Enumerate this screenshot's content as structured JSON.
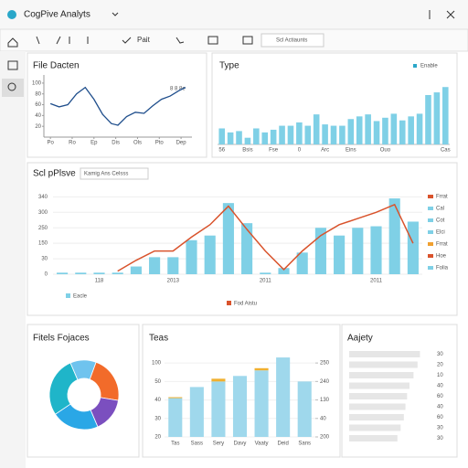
{
  "app": {
    "title": "CogPive Analyts"
  },
  "toolbar": {
    "items": [
      "Pait",
      "Scl Actiaunts"
    ]
  },
  "line_panel": {
    "type": "line",
    "title": "File Dacten",
    "annotation": "8 8 8e",
    "color": "#1f4e8c",
    "x": [
      0,
      0.4,
      0.8,
      1.2,
      1.6,
      2.0,
      2.4,
      2.8,
      3.1,
      3.5,
      3.9,
      4.3,
      4.7,
      5.1,
      5.5,
      5.9,
      6.2
    ],
    "values": [
      62,
      56,
      60,
      80,
      92,
      70,
      42,
      25,
      22,
      38,
      46,
      44,
      58,
      70,
      76,
      86,
      92
    ],
    "xlim": [
      -0.3,
      6.5
    ],
    "ylim": [
      0,
      110
    ],
    "xticks": [
      {
        "value": 0,
        "label": "Po"
      },
      {
        "value": 1,
        "label": "Ro"
      },
      {
        "value": 2,
        "label": "Ep"
      },
      {
        "value": 3,
        "label": "Dis"
      },
      {
        "value": 4,
        "label": "Ols"
      },
      {
        "value": 5,
        "label": "Pto"
      },
      {
        "value": 6,
        "label": "Dep"
      }
    ],
    "yticks": [
      20,
      40,
      60,
      80,
      100
    ]
  },
  "bar_panel": {
    "type": "bar",
    "title": "Type",
    "legend": "Enable",
    "color": "#7fd0e6",
    "categories": [
      "56",
      null,
      null,
      "Bsis",
      null,
      null,
      "Fse",
      null,
      null,
      "0",
      null,
      null,
      "Arc",
      null,
      null,
      "Eins",
      null,
      null,
      null,
      "Ouo",
      null,
      null,
      null,
      null,
      null,
      null,
      "Cas"
    ],
    "values": [
      24,
      18,
      20,
      10,
      24,
      18,
      22,
      28,
      28,
      33,
      28,
      45,
      30,
      28,
      28,
      38,
      42,
      45,
      35,
      40,
      46,
      36,
      42,
      46,
      74,
      78,
      86
    ],
    "ylim": [
      0,
      100
    ]
  },
  "combo_panel": {
    "type": "bar-line",
    "title": "Scl pPlsve",
    "dropdown": "Kamig Ans Celsss",
    "categories": [
      null,
      null,
      "118",
      null,
      null,
      null,
      "2013",
      null,
      null,
      null,
      null,
      "2011",
      null,
      null,
      null,
      null,
      null,
      "2011",
      null,
      null
    ],
    "series": [
      {
        "name": "Eacle",
        "color": "#7fd0e6",
        "values": [
          0.1,
          0.1,
          0.1,
          0.1,
          0.5,
          1.1,
          1.1,
          2.2,
          2.5,
          4.6,
          3.3,
          0.1,
          0.4,
          1.4,
          3.0,
          2.5,
          3.0,
          3.1,
          4.9,
          3.4
        ]
      },
      {
        "name": "Fod Aistu",
        "color": "#d9532c",
        "values": [
          null,
          null,
          null,
          0.2,
          0.9,
          1.5,
          1.5,
          2.4,
          3.2,
          4.4,
          2.9,
          1.5,
          0.3,
          1.5,
          2.5,
          3.2,
          3.6,
          4.0,
          4.5,
          2.0
        ]
      }
    ],
    "ylim": [
      0,
      5.2
    ],
    "yticks": [
      {
        "value": 0,
        "label": "0"
      },
      {
        "value": 1,
        "label": "30"
      },
      {
        "value": 2,
        "label": "150"
      },
      {
        "value": 3,
        "label": "250"
      },
      {
        "value": 4,
        "label": "300"
      },
      {
        "value": 5,
        "label": "340"
      }
    ],
    "grid": true,
    "legend_items": [
      {
        "label": "Frrat",
        "color": "#d9532c"
      },
      {
        "label": "Cal",
        "color": "#7fd0e6"
      },
      {
        "label": "Cot",
        "color": "#7fd0e6"
      },
      {
        "label": "Elci",
        "color": "#7fd0e6"
      },
      {
        "label": "Frrat",
        "color": "#f0a030"
      },
      {
        "label": "Hoe",
        "color": "#d9532c"
      },
      {
        "label": "Folia",
        "color": "#7fd0e6"
      }
    ]
  },
  "donut_panel": {
    "type": "pie",
    "title": "Fitels Fojaces",
    "values": [
      22,
      16,
      22,
      28,
      12
    ],
    "colors": [
      "#f26b2a",
      "#7b4fbf",
      "#2aa7e6",
      "#1fb5c9",
      "#6fc3ee"
    ]
  },
  "teas_panel": {
    "type": "bar",
    "title": "Teas",
    "categories": [
      "Tas",
      "Sass",
      "Sery",
      "Davy",
      "Vaaty",
      "Deid",
      "Sans"
    ],
    "series": [
      {
        "color": "#9fd8ec",
        "values": [
          2.1,
          2.7,
          3.0,
          3.3,
          3.6,
          4.3,
          3.0
        ]
      },
      {
        "color": "#f0b030",
        "values": [
          0.05,
          0,
          0.15,
          0,
          0.12,
          0,
          0
        ]
      }
    ],
    "ylim": [
      0,
      4.6
    ],
    "yticks": [
      {
        "value": 0,
        "label": "20"
      },
      {
        "value": 1,
        "label": "30"
      },
      {
        "value": 2,
        "label": "40"
      },
      {
        "value": 3,
        "label": "50"
      },
      {
        "value": 4,
        "label": "100"
      }
    ],
    "y2lim": [
      0,
      4.6
    ],
    "y2ticks": [
      {
        "value": 0,
        "label": "200"
      },
      {
        "value": 1,
        "label": "40"
      },
      {
        "value": 2,
        "label": "130"
      },
      {
        "value": 3,
        "label": "240"
      },
      {
        "value": 4,
        "label": "250"
      }
    ]
  },
  "aajety_panel": {
    "type": "hbar",
    "title": "Aajety",
    "color": "#e6e6e6",
    "values": [
      88,
      85,
      80,
      75,
      72,
      70,
      68,
      64,
      60
    ],
    "row_labels": [
      "30",
      "20",
      "10",
      "40",
      "60",
      "40",
      "60",
      "30",
      "30"
    ],
    "xlim": [
      0,
      100
    ]
  }
}
